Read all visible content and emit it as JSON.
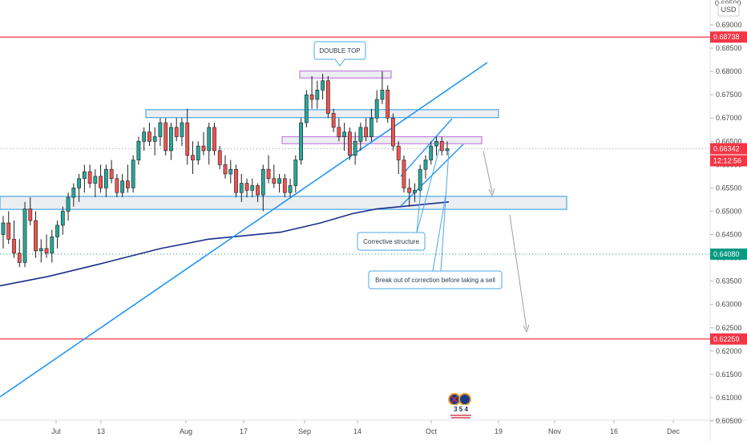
{
  "chart_data": {
    "type": "candlestick",
    "currency": "USD",
    "y_ticks": [
      "0.69000",
      "0.68500",
      "0.68000",
      "0.67500",
      "0.67000",
      "0.66500",
      "0.66000",
      "0.65500",
      "0.65000",
      "0.64500",
      "0.64000",
      "0.63500",
      "0.63000",
      "0.62500",
      "0.62000",
      "0.61500",
      "0.61000",
      "0.60500"
    ],
    "y_top_partial": "0.69500",
    "x_ticks": [
      "Jul",
      "13",
      "Aug",
      "17",
      "Sep",
      "14",
      "Oct",
      "19",
      "Nov",
      "16",
      "Dec"
    ],
    "price_labels": [
      {
        "value": "0.68738",
        "color": "#f23645"
      },
      {
        "value": "0.66342",
        "color": "#f23645"
      },
      {
        "value": "12:12:56",
        "color": "#f23645"
      },
      {
        "value": "0.64080",
        "color": "#089981"
      },
      {
        "value": "0.62259",
        "color": "#f23645"
      }
    ],
    "horizontal_levels": [
      {
        "price": 0.68738,
        "color": "#f23645",
        "style": "solid"
      },
      {
        "price": 0.62259,
        "color": "#f23645",
        "style": "solid"
      },
      {
        "price": 0.6408,
        "color": "#089981",
        "style": "dotted"
      },
      {
        "price": 0.66342,
        "color": "#9aa0a6",
        "style": "dotted"
      }
    ],
    "zones": [
      {
        "name": "double-top-zone",
        "low": 0.6786,
        "high": 0.6801,
        "color": "#c77de0"
      },
      {
        "name": "resistance-zone",
        "low": 0.6701,
        "high": 0.6718,
        "color": "#4aa8e8"
      },
      {
        "name": "mid-zone",
        "low": 0.6645,
        "high": 0.666,
        "color": "#c77de0"
      },
      {
        "name": "support-zone",
        "low": 0.6504,
        "high": 0.6532,
        "color": "#4aa8e8"
      }
    ],
    "annotations": [
      {
        "text": "DOUBLE TOP"
      },
      {
        "text": "Corrective structure"
      },
      {
        "text": "Break out of correction before taking a sell"
      }
    ],
    "candles": [
      [
        0.645,
        0.649,
        0.642,
        0.6475
      ],
      [
        0.6475,
        0.65,
        0.643,
        0.644
      ],
      [
        0.644,
        0.648,
        0.64,
        0.641
      ],
      [
        0.641,
        0.644,
        0.638,
        0.639
      ],
      [
        0.639,
        0.652,
        0.638,
        0.6505
      ],
      [
        0.6505,
        0.653,
        0.647,
        0.648
      ],
      [
        0.648,
        0.65,
        0.64,
        0.6415
      ],
      [
        0.6415,
        0.644,
        0.639,
        0.642
      ],
      [
        0.642,
        0.645,
        0.64,
        0.641
      ],
      [
        0.641,
        0.646,
        0.639,
        0.6445
      ],
      [
        0.6445,
        0.648,
        0.642,
        0.647
      ],
      [
        0.647,
        0.651,
        0.645,
        0.65
      ],
      [
        0.65,
        0.654,
        0.648,
        0.653
      ],
      [
        0.653,
        0.656,
        0.651,
        0.655
      ],
      [
        0.655,
        0.658,
        0.652,
        0.657
      ],
      [
        0.657,
        0.66,
        0.654,
        0.6585
      ],
      [
        0.6585,
        0.66,
        0.655,
        0.656
      ],
      [
        0.656,
        0.659,
        0.653,
        0.6575
      ],
      [
        0.6575,
        0.66,
        0.654,
        0.655
      ],
      [
        0.655,
        0.66,
        0.653,
        0.659
      ],
      [
        0.659,
        0.661,
        0.656,
        0.657
      ],
      [
        0.657,
        0.658,
        0.653,
        0.654
      ],
      [
        0.654,
        0.658,
        0.653,
        0.6565
      ],
      [
        0.6565,
        0.66,
        0.654,
        0.655
      ],
      [
        0.655,
        0.662,
        0.654,
        0.661
      ],
      [
        0.661,
        0.666,
        0.66,
        0.665
      ],
      [
        0.665,
        0.668,
        0.663,
        0.667
      ],
      [
        0.667,
        0.669,
        0.664,
        0.665
      ],
      [
        0.665,
        0.668,
        0.662,
        0.666
      ],
      [
        0.666,
        0.67,
        0.664,
        0.669
      ],
      [
        0.669,
        0.67,
        0.662,
        0.663
      ],
      [
        0.663,
        0.669,
        0.661,
        0.668
      ],
      [
        0.668,
        0.67,
        0.665,
        0.666
      ],
      [
        0.666,
        0.67,
        0.664,
        0.669
      ],
      [
        0.669,
        0.672,
        0.66,
        0.662
      ],
      [
        0.662,
        0.665,
        0.658,
        0.661
      ],
      [
        0.661,
        0.665,
        0.66,
        0.664
      ],
      [
        0.664,
        0.667,
        0.662,
        0.663
      ],
      [
        0.663,
        0.669,
        0.66,
        0.668
      ],
      [
        0.668,
        0.669,
        0.662,
        0.663
      ],
      [
        0.663,
        0.664,
        0.659,
        0.66
      ],
      [
        0.66,
        0.662,
        0.657,
        0.658
      ],
      [
        0.658,
        0.661,
        0.656,
        0.659
      ],
      [
        0.659,
        0.66,
        0.653,
        0.654
      ],
      [
        0.654,
        0.658,
        0.652,
        0.656
      ],
      [
        0.656,
        0.657,
        0.653,
        0.6545
      ],
      [
        0.6545,
        0.657,
        0.653,
        0.6555
      ],
      [
        0.6555,
        0.656,
        0.652,
        0.6535
      ],
      [
        0.6535,
        0.66,
        0.65,
        0.659
      ],
      [
        0.659,
        0.662,
        0.656,
        0.657
      ],
      [
        0.657,
        0.66,
        0.655,
        0.656
      ],
      [
        0.656,
        0.658,
        0.654,
        0.657
      ],
      [
        0.657,
        0.658,
        0.653,
        0.654
      ],
      [
        0.654,
        0.657,
        0.653,
        0.6555
      ],
      [
        0.6555,
        0.662,
        0.654,
        0.661
      ],
      [
        0.661,
        0.67,
        0.66,
        0.669
      ],
      [
        0.669,
        0.676,
        0.668,
        0.675
      ],
      [
        0.675,
        0.679,
        0.672,
        0.674
      ],
      [
        0.674,
        0.678,
        0.672,
        0.676
      ],
      [
        0.676,
        0.6795,
        0.674,
        0.678
      ],
      [
        0.678,
        0.679,
        0.67,
        0.671
      ],
      [
        0.671,
        0.672,
        0.667,
        0.668
      ],
      [
        0.668,
        0.67,
        0.665,
        0.666
      ],
      [
        0.666,
        0.669,
        0.663,
        0.667
      ],
      [
        0.667,
        0.668,
        0.661,
        0.662
      ],
      [
        0.662,
        0.667,
        0.66,
        0.665
      ],
      [
        0.665,
        0.669,
        0.663,
        0.668
      ],
      [
        0.668,
        0.67,
        0.665,
        0.666
      ],
      [
        0.666,
        0.672,
        0.665,
        0.67
      ],
      [
        0.67,
        0.676,
        0.669,
        0.674
      ],
      [
        0.674,
        0.68,
        0.673,
        0.676
      ],
      [
        0.676,
        0.677,
        0.669,
        0.67
      ],
      [
        0.67,
        0.671,
        0.663,
        0.664
      ],
      [
        0.664,
        0.665,
        0.658,
        0.661
      ],
      [
        0.661,
        0.662,
        0.654,
        0.655
      ],
      [
        0.655,
        0.657,
        0.651,
        0.654
      ],
      [
        0.654,
        0.656,
        0.652,
        0.6545
      ],
      [
        0.6545,
        0.66,
        0.653,
        0.659
      ],
      [
        0.659,
        0.662,
        0.657,
        0.661
      ],
      [
        0.661,
        0.665,
        0.66,
        0.664
      ],
      [
        0.664,
        0.666,
        0.662,
        0.665
      ],
      [
        0.665,
        0.666,
        0.662,
        0.663
      ],
      [
        0.663,
        0.665,
        0.662,
        0.6634
      ]
    ],
    "moving_average": [
      [
        0,
        0.634
      ],
      [
        60,
        0.636
      ],
      [
        120,
        0.6385
      ],
      [
        200,
        0.642
      ],
      [
        260,
        0.644
      ],
      [
        350,
        0.6455
      ],
      [
        400,
        0.6475
      ],
      [
        440,
        0.6495
      ],
      [
        470,
        0.6505
      ],
      [
        500,
        0.651
      ],
      [
        560,
        0.652
      ]
    ],
    "series_colors": {
      "up": "#26a69a",
      "down": "#ef5350",
      "ma": "#1a2f8a",
      "trend": "#2196f3",
      "zone_edge_blue": "#4aa8e8",
      "zone_edge_purple": "#c77de0"
    }
  },
  "badge": {
    "numbers": "3 5 4"
  }
}
